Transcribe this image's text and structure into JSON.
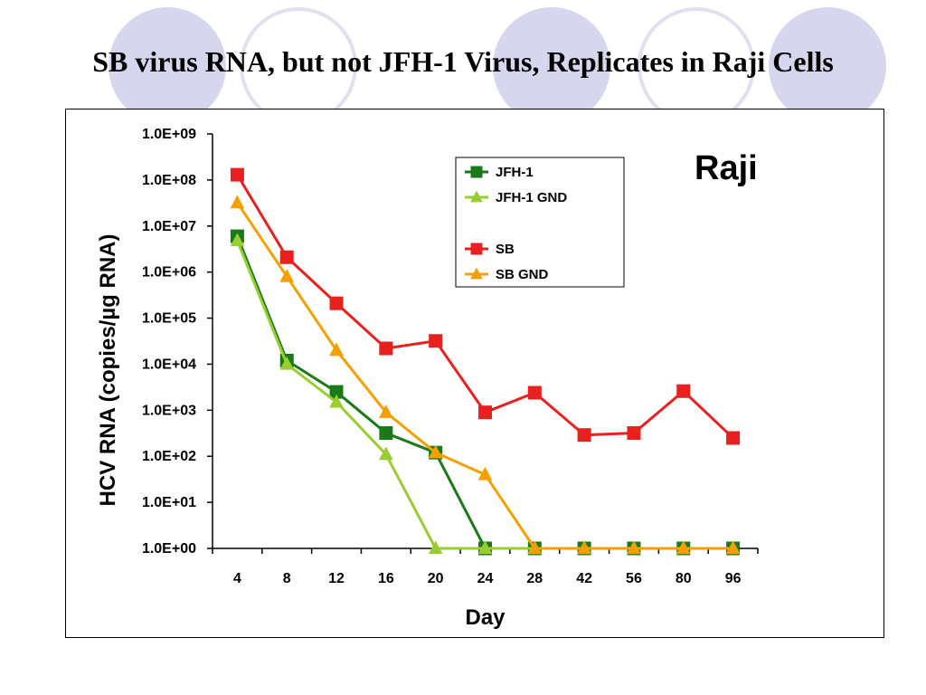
{
  "slide": {
    "title": "SB virus RNA, but not JFH-1 Virus, Replicates in Raji Cells"
  },
  "chart_data": {
    "type": "line",
    "panel_label": "Raji",
    "xlabel": "Day",
    "ylabel": "HCV RNA (copies/µg RNA)",
    "y_scale": "log",
    "ylim": [
      1,
      1000000000
    ],
    "y_ticks": [
      "1.0E+00",
      "1.0E+01",
      "1.0E+02",
      "1.0E+03",
      "1.0E+04",
      "1.0E+05",
      "1.0E+06",
      "1.0E+07",
      "1.0E+08",
      "1.0E+09"
    ],
    "categories": [
      "4",
      "8",
      "12",
      "16",
      "20",
      "24",
      "28",
      "42",
      "56",
      "80",
      "96"
    ],
    "grid": false,
    "legend_position": "top-right",
    "series": [
      {
        "name": "JFH-1",
        "color": "#1a7a1a",
        "marker": "square",
        "values": [
          [
            0,
            6000000
          ],
          [
            1,
            12000
          ],
          [
            2,
            2500
          ],
          [
            3,
            320
          ],
          [
            4,
            120
          ],
          [
            5,
            1
          ],
          [
            6,
            1
          ],
          [
            7,
            1
          ],
          [
            8,
            1
          ],
          [
            9,
            1
          ],
          [
            10,
            1
          ]
        ]
      },
      {
        "name": "JFH-1 GND",
        "color": "#9acd32",
        "marker": "triangle",
        "values": [
          [
            0,
            4800000
          ],
          [
            1,
            10000
          ],
          [
            2,
            1500
          ],
          [
            3,
            110
          ],
          [
            4,
            1
          ],
          [
            5,
            1
          ],
          [
            6,
            1
          ],
          [
            7,
            1
          ],
          [
            8,
            1
          ],
          [
            9,
            1
          ],
          [
            10,
            1
          ]
        ]
      },
      {
        "name": "SB",
        "color": "#e8201e",
        "marker": "square",
        "values": [
          [
            0,
            130000000
          ],
          [
            1,
            2100000
          ],
          [
            2,
            210000
          ],
          [
            3,
            22000
          ],
          [
            4,
            32000
          ],
          [
            5,
            900
          ],
          [
            6,
            2400
          ],
          [
            7,
            290
          ],
          [
            8,
            320
          ],
          [
            9,
            2600
          ],
          [
            10,
            250
          ]
        ]
      },
      {
        "name": "SB GND",
        "color": "#f5a000",
        "marker": "triangle",
        "values": [
          [
            0,
            32000000
          ],
          [
            1,
            800000
          ],
          [
            2,
            20000
          ],
          [
            3,
            900
          ],
          [
            4,
            120
          ],
          [
            5,
            40
          ],
          [
            6,
            1
          ],
          [
            7,
            1
          ],
          [
            8,
            1
          ],
          [
            9,
            1
          ],
          [
            10,
            1
          ]
        ]
      }
    ]
  }
}
